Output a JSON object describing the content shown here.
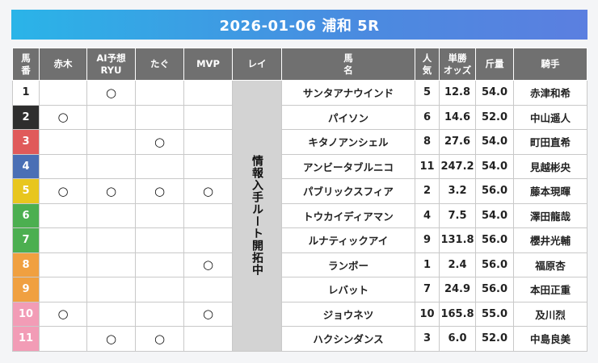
{
  "title": "2026-01-06 浦和 5R",
  "headers": {
    "num": [
      "馬",
      "番"
    ],
    "akagi": "赤木",
    "ai": [
      "AI予想",
      "RYU"
    ],
    "tagu": "たぐ",
    "mvp": "MVP",
    "rei": "レイ",
    "horse": [
      "馬",
      "名"
    ],
    "pop": [
      "人",
      "気"
    ],
    "odds": [
      "単勝",
      "オッズ"
    ],
    "kin": "斤量",
    "jockey": "騎手"
  },
  "rei_text": "情報入手ルート開拓中",
  "mark_symbol": "○",
  "rows": [
    {
      "num": "1",
      "color": "#ffffff",
      "text_color": "#222222",
      "marks": [
        false,
        true,
        false,
        false
      ],
      "horse": "サンタアナウインド",
      "pop": "5",
      "odds": "12.8",
      "kin": "54.0",
      "jockey": "赤津和希"
    },
    {
      "num": "2",
      "color": "#2e2e2e",
      "text_color": "#ffffff",
      "marks": [
        true,
        false,
        false,
        false
      ],
      "horse": "パイソン",
      "pop": "6",
      "odds": "14.6",
      "kin": "52.0",
      "jockey": "中山遥人"
    },
    {
      "num": "3",
      "color": "#e05a5a",
      "text_color": "#ffffff",
      "marks": [
        false,
        false,
        true,
        false
      ],
      "horse": "キタノアンシェル",
      "pop": "8",
      "odds": "27.6",
      "kin": "54.0",
      "jockey": "町田直希"
    },
    {
      "num": "4",
      "color": "#4a6fb5",
      "text_color": "#ffffff",
      "marks": [
        false,
        false,
        false,
        false
      ],
      "horse": "アンビータブルニコ",
      "pop": "11",
      "odds": "247.2",
      "kin": "54.0",
      "jockey": "見越彬央"
    },
    {
      "num": "5",
      "color": "#e8c61e",
      "text_color": "#ffffff",
      "marks": [
        true,
        true,
        true,
        true
      ],
      "horse": "パブリックスフィア",
      "pop": "2",
      "odds": "3.2",
      "kin": "56.0",
      "jockey": "藤本現暉"
    },
    {
      "num": "6",
      "color": "#4caf50",
      "text_color": "#ffffff",
      "marks": [
        false,
        false,
        false,
        false
      ],
      "horse": "トウカイディアマン",
      "pop": "4",
      "odds": "7.5",
      "kin": "54.0",
      "jockey": "澤田龍哉"
    },
    {
      "num": "7",
      "color": "#4caf50",
      "text_color": "#ffffff",
      "marks": [
        false,
        false,
        false,
        false
      ],
      "horse": "ルナティックアイ",
      "pop": "9",
      "odds": "131.8",
      "kin": "56.0",
      "jockey": "櫻井光輔"
    },
    {
      "num": "8",
      "color": "#f0a040",
      "text_color": "#ffffff",
      "marks": [
        false,
        false,
        false,
        true
      ],
      "horse": "ランボー",
      "pop": "1",
      "odds": "2.4",
      "kin": "56.0",
      "jockey": "福原杏"
    },
    {
      "num": "9",
      "color": "#f0a040",
      "text_color": "#ffffff",
      "marks": [
        false,
        false,
        false,
        false
      ],
      "horse": "レバット",
      "pop": "7",
      "odds": "24.9",
      "kin": "56.0",
      "jockey": "本田正重"
    },
    {
      "num": "10",
      "color": "#f29cb6",
      "text_color": "#ffffff",
      "marks": [
        true,
        false,
        false,
        true
      ],
      "horse": "ジョウネツ",
      "pop": "10",
      "odds": "165.8",
      "kin": "55.0",
      "jockey": "及川烈"
    },
    {
      "num": "11",
      "color": "#f29cb6",
      "text_color": "#ffffff",
      "marks": [
        false,
        true,
        true,
        false
      ],
      "horse": "ハクシンダンス",
      "pop": "3",
      "odds": "6.0",
      "kin": "52.0",
      "jockey": "中島良美"
    }
  ]
}
